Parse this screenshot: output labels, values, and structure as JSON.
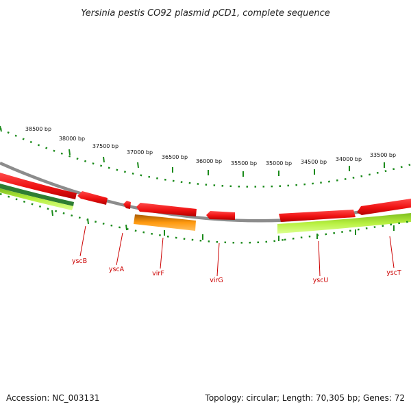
{
  "header": {
    "title": "Yersinia pestis CO92 plasmid pCD1, complete sequence"
  },
  "footer": {
    "accession": "Accession: NC_003131",
    "summary": "Topology: circular; Length: 70,305 bp; Genes: 72"
  },
  "scale": {
    "ticks": [
      "38500 bp",
      "38000 bp",
      "37500 bp",
      "37000 bp",
      "36500 bp",
      "36000 bp",
      "35500 bp",
      "35000 bp",
      "34500 bp",
      "34000 bp",
      "33500 bp"
    ]
  },
  "genes": [
    "yscB",
    "yscA",
    "virF",
    "virG",
    "yscU",
    "yscT"
  ],
  "colors": {
    "backbone": "#8c8c8c",
    "gene_red": "#ee1111",
    "gene_orange": "#ff9900",
    "gene_lime": "#aaee33",
    "gene_darkgreen": "#2e7d32",
    "tick_green": "#1a8a1a",
    "label_red": "#cc0000"
  }
}
